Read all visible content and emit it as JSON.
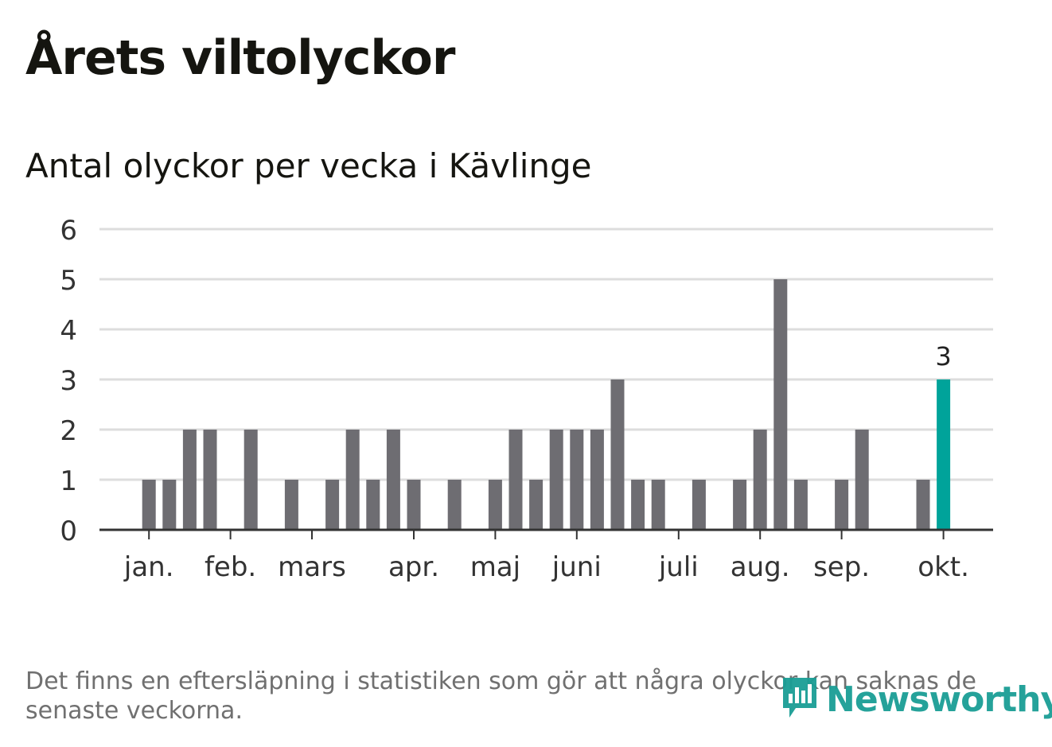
{
  "title": "Årets viltolyckor",
  "subtitle": "Antal olyckor per vecka i Kävlinge",
  "footnote": "Det finns en eftersläpning i statistiken som gör att några olyckor kan saknas de senaste veckorna.",
  "brand": {
    "name": "Newsworthy",
    "color": "#1a9e95"
  },
  "colors": {
    "bar": "#6e6d72",
    "highlight": "#00a39a",
    "grid": "#dddddd",
    "axis": "#333333",
    "text": "#333333"
  },
  "chart_data": {
    "type": "bar",
    "title": "Antal olyckor per vecka i Kävlinge",
    "xlabel": "",
    "ylabel": "",
    "ylim": [
      0,
      6
    ],
    "yticks": [
      0,
      1,
      2,
      3,
      4,
      5,
      6
    ],
    "weeks": [
      1,
      2,
      3,
      4,
      5,
      6,
      7,
      8,
      9,
      10,
      11,
      12,
      13,
      14,
      15,
      16,
      17,
      18,
      19,
      20,
      21,
      22,
      23,
      24,
      25,
      26,
      27,
      28,
      29,
      30,
      31,
      32,
      33,
      34,
      35,
      36,
      37,
      38,
      39,
      40,
      41,
      42
    ],
    "values": [
      0,
      0,
      1,
      1,
      2,
      2,
      0,
      2,
      0,
      1,
      0,
      1,
      2,
      1,
      2,
      1,
      0,
      1,
      0,
      1,
      2,
      1,
      2,
      2,
      2,
      3,
      1,
      1,
      0,
      1,
      0,
      1,
      2,
      5,
      1,
      0,
      1,
      2,
      0,
      0,
      1,
      3
    ],
    "highlight_index": 41,
    "highlight_label": "3",
    "month_ticks": [
      {
        "label": "jan.",
        "week": 3
      },
      {
        "label": "feb.",
        "week": 7
      },
      {
        "label": "mars",
        "week": 11
      },
      {
        "label": "apr.",
        "week": 16
      },
      {
        "label": "maj",
        "week": 20
      },
      {
        "label": "juni",
        "week": 24
      },
      {
        "label": "juli",
        "week": 29
      },
      {
        "label": "aug.",
        "week": 33
      },
      {
        "label": "sep.",
        "week": 37
      },
      {
        "label": "okt.",
        "week": 42
      }
    ]
  }
}
